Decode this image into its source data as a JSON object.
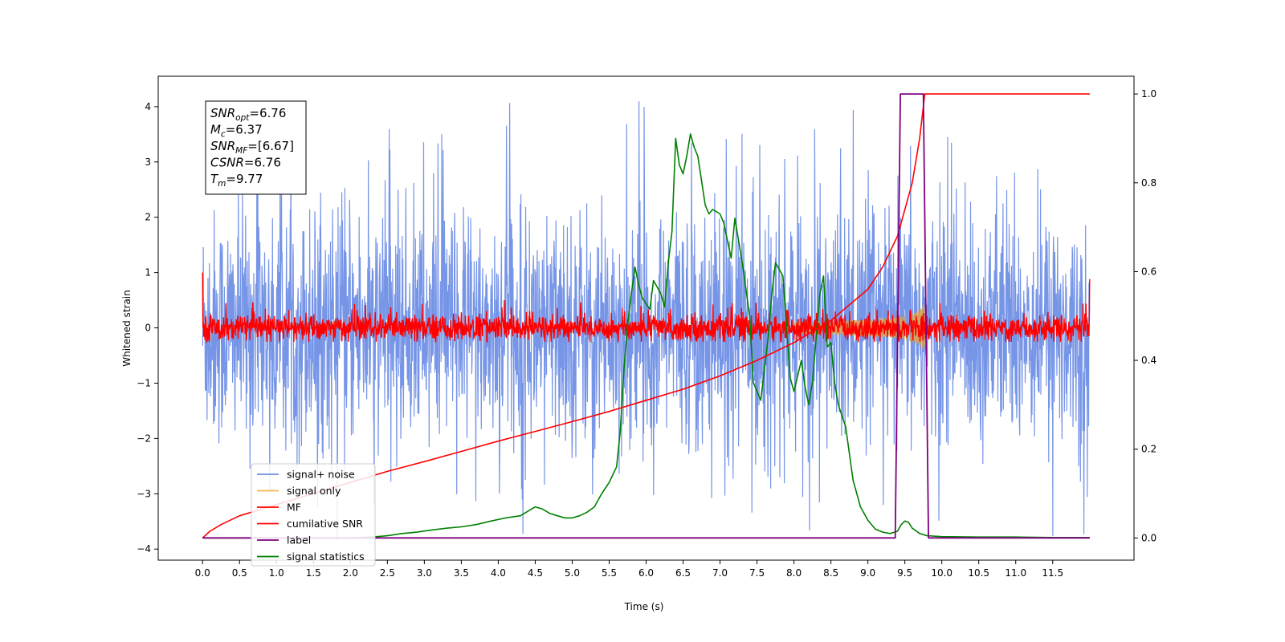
{
  "chart_data": {
    "type": "line",
    "title": "",
    "xlabel": "Time (s)",
    "ylabel": "Whitened strain",
    "xlim": [
      -0.6,
      12.6
    ],
    "ylim": [
      -4.2,
      4.55
    ],
    "ylim_right": [
      -0.05,
      1.04
    ],
    "x_ticks": [
      0.0,
      0.5,
      1.0,
      1.5,
      2.0,
      2.5,
      3.0,
      3.5,
      4.0,
      4.5,
      5.0,
      5.5,
      6.0,
      6.5,
      7.0,
      7.5,
      8.0,
      8.5,
      9.0,
      9.5,
      10.0,
      10.5,
      11.0,
      11.5
    ],
    "x_tick_labels": [
      "0.0",
      "0.5",
      "1.0",
      "1.5",
      "2.0",
      "2.5",
      "3.0",
      "3.5",
      "4.0",
      "4.5",
      "5.0",
      "5.5",
      "6.0",
      "6.5",
      "7.0",
      "7.5",
      "8.0",
      "8.5",
      "9.0",
      "9.5",
      "10.0",
      "10.5",
      "11.0",
      "11.5"
    ],
    "y_ticks": [
      -4,
      -3,
      -2,
      -1,
      0,
      1,
      2,
      3,
      4
    ],
    "y_tick_labels": [
      "−4",
      "−3",
      "−2",
      "−1",
      "0",
      "1",
      "2",
      "3",
      "4"
    ],
    "y_right_ticks": [
      0.0,
      0.2,
      0.4,
      0.6,
      0.8,
      1.0
    ],
    "y_right_tick_labels": [
      "0.0",
      "0.2",
      "0.4",
      "0.6",
      "0.8",
      "1.0"
    ],
    "grid": false,
    "legend_position": "lower-left",
    "colors": {
      "signal_noise": "#6f8fe6",
      "signal_only": "#f2b84b",
      "mf": "#ff0000",
      "cumulative_snr": "#ff0000",
      "label": "#800080",
      "signal_statistics": "#008000"
    },
    "annotation": {
      "lines": [
        {
          "base": "SNR",
          "sub": "opt",
          "value": "=6.76"
        },
        {
          "base": "M",
          "sub": "c",
          "value": "=6.37"
        },
        {
          "base": "SNR",
          "sub": "MF",
          "value": "=[6.67]"
        },
        {
          "base": "CSNR",
          "sub": "",
          "value": "=6.76"
        },
        {
          "base": "T",
          "sub": "m",
          "value": "=9.77"
        }
      ]
    },
    "series": [
      {
        "name": "signal+ noise",
        "axis": "left",
        "style": "noise",
        "x_range": [
          0.0,
          12.0
        ],
        "approx_std": 1.0,
        "approx_max": 4.15,
        "approx_min": -3.85
      },
      {
        "name": "signal only",
        "axis": "left",
        "style": "chirp",
        "x_range": [
          8.0,
          9.77
        ],
        "peak_amplitude": 0.55,
        "peak_time": 9.77
      },
      {
        "name": "MF",
        "axis": "left",
        "style": "noise",
        "x_range": [
          0.0,
          12.0
        ],
        "approx_std": 0.12,
        "approx_max": 1.0,
        "approx_min": -0.25
      },
      {
        "name": "cumilative SNR",
        "axis": "right",
        "x": [
          0.0,
          0.1,
          0.25,
          0.5,
          1.0,
          1.5,
          2.0,
          2.5,
          3.0,
          3.5,
          4.0,
          4.5,
          5.0,
          5.5,
          6.0,
          6.5,
          7.0,
          7.5,
          8.0,
          8.5,
          9.0,
          9.2,
          9.4,
          9.6,
          9.7,
          9.77,
          10.0,
          11.0,
          12.0
        ],
        "values": [
          0.0,
          0.015,
          0.03,
          0.05,
          0.075,
          0.1,
          0.125,
          0.15,
          0.172,
          0.195,
          0.218,
          0.24,
          0.262,
          0.285,
          0.31,
          0.335,
          0.365,
          0.4,
          0.44,
          0.49,
          0.56,
          0.61,
          0.68,
          0.8,
          0.9,
          1.0,
          1.0,
          1.0,
          1.0
        ]
      },
      {
        "name": "label",
        "axis": "right",
        "x": [
          0.0,
          9.37,
          9.44,
          9.75,
          9.82,
          12.0
        ],
        "values": [
          0.0,
          0.0,
          1.0,
          1.0,
          0.0,
          0.0
        ]
      },
      {
        "name": "signal statistics",
        "axis": "right",
        "x": [
          0.0,
          0.5,
          1.0,
          1.5,
          2.0,
          2.3,
          2.5,
          2.7,
          2.9,
          3.1,
          3.3,
          3.5,
          3.7,
          3.9,
          4.1,
          4.3,
          4.5,
          4.6,
          4.7,
          4.8,
          4.9,
          5.0,
          5.1,
          5.2,
          5.3,
          5.4,
          5.5,
          5.6,
          5.65,
          5.7,
          5.75,
          5.8,
          5.85,
          5.9,
          5.95,
          6.05,
          6.1,
          6.2,
          6.25,
          6.3,
          6.35,
          6.4,
          6.45,
          6.5,
          6.55,
          6.6,
          6.65,
          6.7,
          6.8,
          6.85,
          6.9,
          7.0,
          7.05,
          7.15,
          7.2,
          7.3,
          7.4,
          7.45,
          7.55,
          7.65,
          7.7,
          7.75,
          7.85,
          7.95,
          8.0,
          8.1,
          8.15,
          8.2,
          8.25,
          8.35,
          8.4,
          8.45,
          8.5,
          8.55,
          8.6,
          8.7,
          8.8,
          8.9,
          9.0,
          9.1,
          9.2,
          9.3,
          9.4,
          9.45,
          9.5,
          9.55,
          9.6,
          9.7,
          9.8,
          10.0,
          10.5,
          11.0,
          11.5,
          12.0
        ],
        "values": [
          0.0,
          0.0,
          0.0,
          0.0,
          0.0,
          0.002,
          0.005,
          0.01,
          0.013,
          0.018,
          0.022,
          0.025,
          0.03,
          0.038,
          0.045,
          0.05,
          0.07,
          0.065,
          0.055,
          0.05,
          0.045,
          0.045,
          0.05,
          0.058,
          0.07,
          0.1,
          0.125,
          0.16,
          0.24,
          0.38,
          0.48,
          0.55,
          0.61,
          0.57,
          0.54,
          0.515,
          0.58,
          0.55,
          0.52,
          0.62,
          0.69,
          0.9,
          0.84,
          0.82,
          0.86,
          0.91,
          0.88,
          0.86,
          0.75,
          0.73,
          0.74,
          0.73,
          0.71,
          0.63,
          0.72,
          0.62,
          0.5,
          0.35,
          0.31,
          0.45,
          0.55,
          0.62,
          0.59,
          0.36,
          0.33,
          0.4,
          0.34,
          0.3,
          0.35,
          0.55,
          0.59,
          0.43,
          0.44,
          0.35,
          0.3,
          0.25,
          0.13,
          0.07,
          0.04,
          0.02,
          0.013,
          0.01,
          0.015,
          0.03,
          0.038,
          0.035,
          0.022,
          0.01,
          0.005,
          0.003,
          0.002,
          0.002,
          0.001,
          0.001
        ]
      }
    ]
  }
}
